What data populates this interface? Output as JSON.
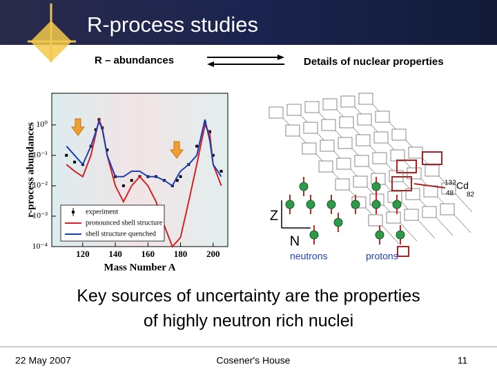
{
  "header": {
    "title": "R-process studies"
  },
  "subheaders": {
    "left": "R – abundances",
    "right": "Details of nuclear properties"
  },
  "chart_data": {
    "type": "line",
    "xlabel": "Mass Number A",
    "ylabel": "r-process abundances",
    "x": [
      110,
      115,
      120,
      125,
      128,
      130,
      132,
      135,
      140,
      145,
      150,
      155,
      160,
      165,
      170,
      175,
      178,
      180,
      185,
      190,
      195,
      198,
      200,
      205
    ],
    "xlim": [
      101,
      209
    ],
    "xticks": [
      120,
      140,
      160,
      180,
      200
    ],
    "ylim": [
      0.0001,
      11
    ],
    "yscale": "log",
    "yticks": [
      {
        "value": 1,
        "label": "10⁰"
      },
      {
        "value": 0.1,
        "label": "10⁻¹"
      },
      {
        "value": 0.01,
        "label": "10⁻²"
      },
      {
        "value": 0.001,
        "label": "10⁻³"
      },
      {
        "value": 0.0001,
        "label": "10⁻⁴"
      }
    ],
    "legend": "lower left",
    "series": [
      {
        "name": "experiment",
        "color": "#000000",
        "mode": "markers",
        "values": [
          0.1,
          0.06,
          0.05,
          0.2,
          0.7,
          1.5,
          0.8,
          0.15,
          0.02,
          0.01,
          0.015,
          0.02,
          0.02,
          0.02,
          0.015,
          0.01,
          0.015,
          0.02,
          0.05,
          0.2,
          1.2,
          0.6,
          0.1,
          0.03
        ]
      },
      {
        "name": "pronounced shell structure",
        "color": "#d42020",
        "mode": "lines",
        "values": [
          0.05,
          0.03,
          0.02,
          0.1,
          0.5,
          1.5,
          0.8,
          0.1,
          0.01,
          0.003,
          0.01,
          0.02,
          0.01,
          0.003,
          0.0005,
          0.0001,
          0.00015,
          0.0002,
          0.003,
          0.05,
          1.0,
          0.5,
          0.05,
          0.01
        ]
      },
      {
        "name": "shell structure quenched",
        "color": "#1a3fb0",
        "mode": "lines",
        "values": [
          0.2,
          0.1,
          0.05,
          0.2,
          0.6,
          1.3,
          0.7,
          0.1,
          0.02,
          0.02,
          0.03,
          0.03,
          0.02,
          0.02,
          0.015,
          0.01,
          0.02,
          0.03,
          0.05,
          0.1,
          1.5,
          0.3,
          0.05,
          0.02
        ]
      }
    ]
  },
  "nuclear_chart": {
    "z_label": "Z",
    "n_label": "N",
    "neutrons": "neutrons",
    "protons": "protons",
    "nucleus": {
      "mass": "132",
      "symbol": "Cd",
      "z": "48",
      "n": "82"
    }
  },
  "body": {
    "lines": [
      "Key sources of uncertainty are the properties",
      "of highly neutron rich nuclei"
    ]
  },
  "footer": {
    "date": "22 May 2007",
    "venue": "Cosener's House",
    "page": "11"
  }
}
